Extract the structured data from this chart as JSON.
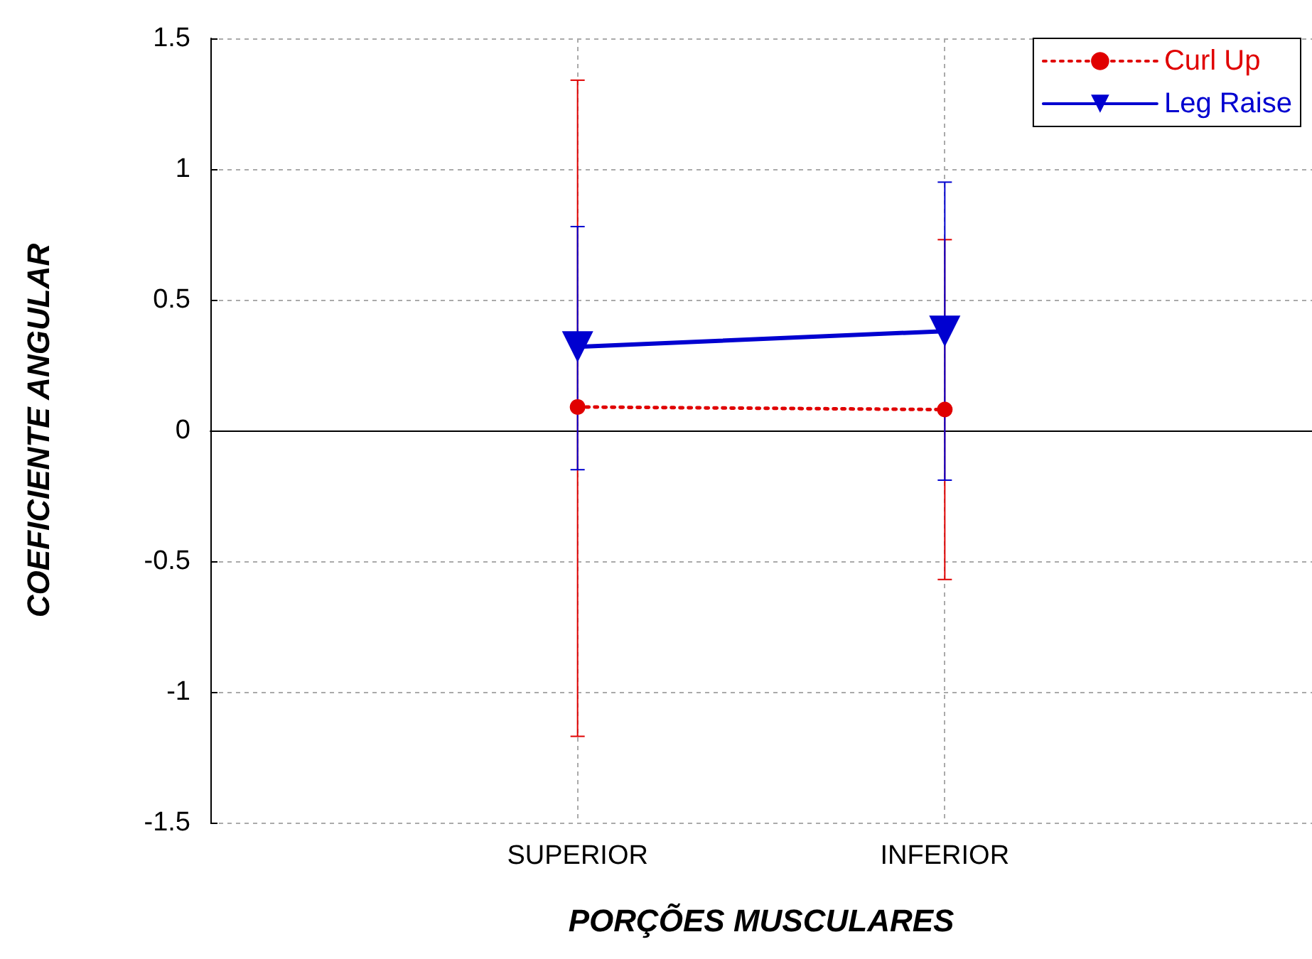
{
  "chart_data": {
    "type": "line",
    "xlabel": "PORÇÕES MUSCULARES",
    "ylabel": "COEFICIENTE ANGULAR",
    "categories": [
      "SUPERIOR",
      "INFERIOR"
    ],
    "series": [
      {
        "name": "Curl Up",
        "color": "#e00000",
        "values": [
          0.09,
          0.08
        ],
        "errors": [
          [
            -1.17,
            1.34
          ],
          [
            -0.57,
            0.73
          ]
        ],
        "marker": "circle",
        "line_style": "dotted"
      },
      {
        "name": "Leg Raise",
        "color": "#0000d0",
        "values": [
          0.32,
          0.38
        ],
        "errors": [
          [
            -0.15,
            0.78
          ],
          [
            -0.19,
            0.95
          ]
        ],
        "marker": "triangle",
        "line_style": "solid"
      }
    ],
    "ylim": [
      -1.5,
      1.5
    ],
    "yticks": [
      -1.5,
      -1,
      -0.5,
      0,
      0.5,
      1,
      1.5
    ],
    "grid": true,
    "legend": "top right"
  }
}
